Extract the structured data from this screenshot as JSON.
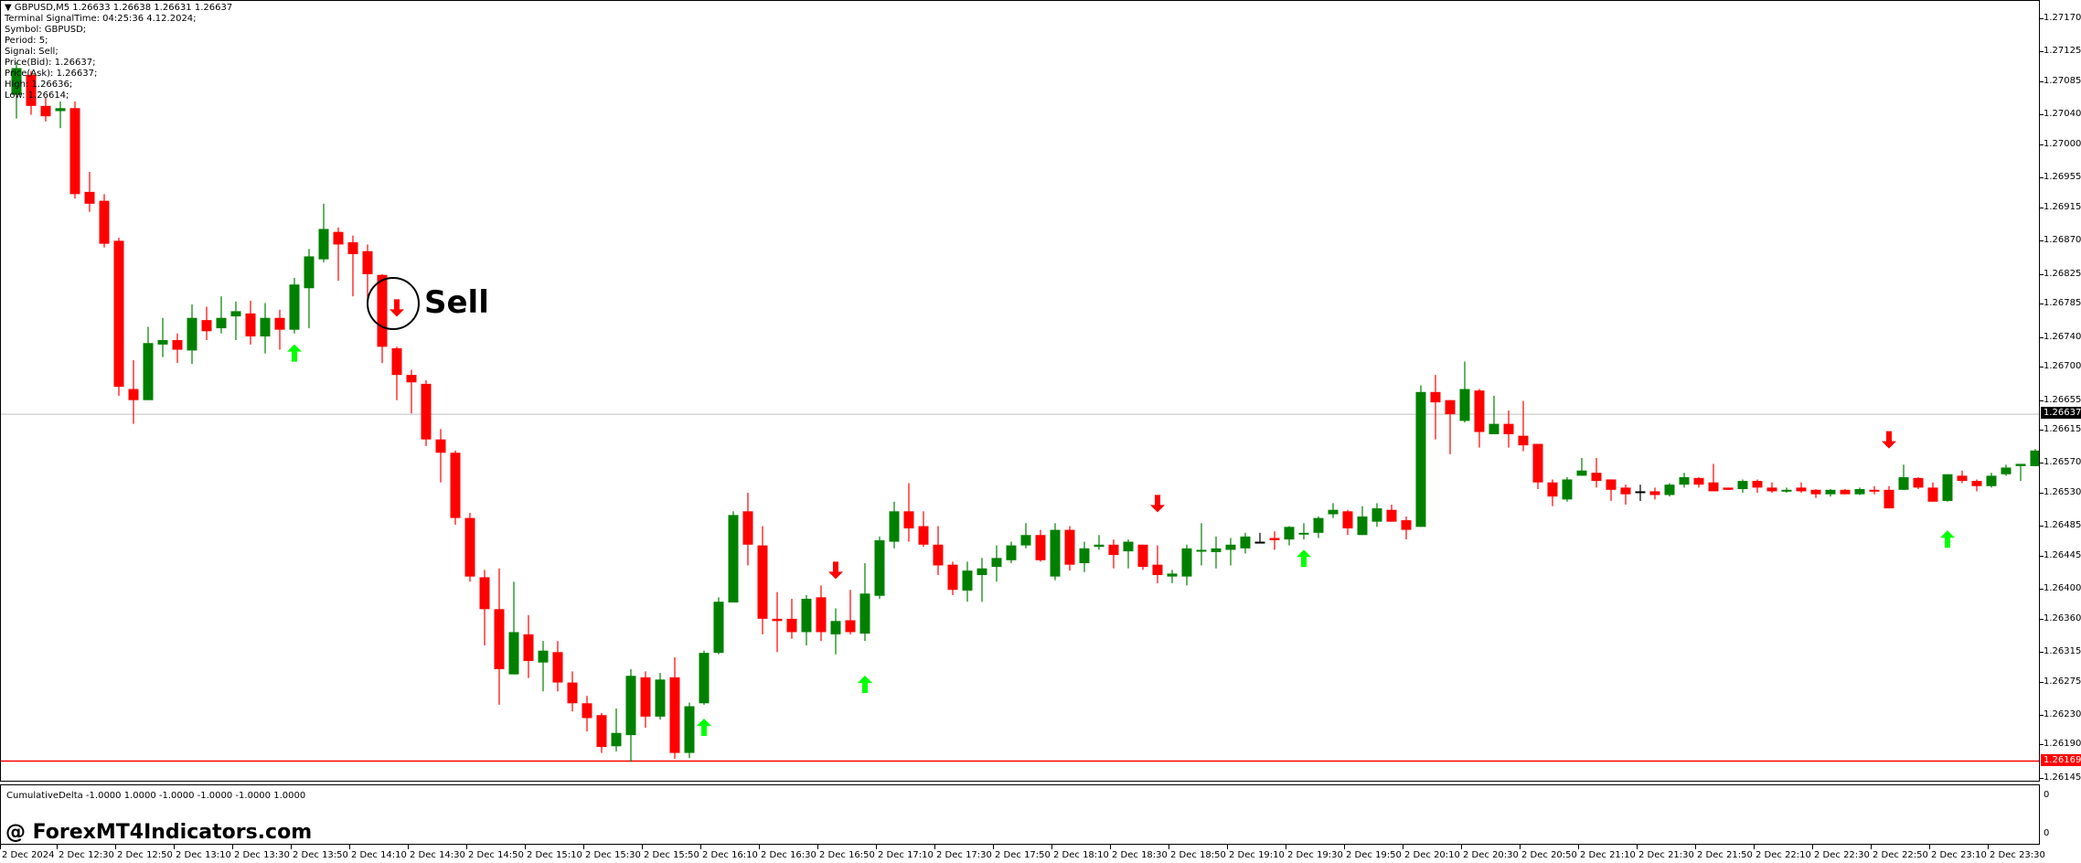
{
  "header": {
    "symbol_line": "GBPUSD,M5  1.26633 1.26638 1.26631 1.26637",
    "info_lines": [
      "Terminal SignalTime: 04:25:36   4.12.2024;",
      "Symbol: GBPUSD;",
      "Period: 5;",
      "Signal: Sell;",
      "Price(Bid): 1.26637;",
      "Price(Ask): 1.26637;",
      "High: 1.26636;",
      "Low: 1.26614;"
    ]
  },
  "annotation": {
    "label": "Sell"
  },
  "subwindow": {
    "title": "CumulativeDelta -1.0000 1.0000 -1.0000 -1.0000 -1.0000 1.0000",
    "axis_top": "0",
    "axis_bottom": "0"
  },
  "watermark": "@ ForexMT4Indicators.com",
  "colors": {
    "bull": "#008000",
    "bear": "#ff0000",
    "doji": "#000000",
    "up_arrow": "#00ff00",
    "down_arrow": "#ff0000",
    "bid_line": "#c0c0c0",
    "level_line": "#ff0000"
  },
  "price_badges": {
    "bid": "1.26637",
    "level": "1.26169"
  },
  "chart_data": {
    "type": "candlestick",
    "title": "GBPUSD,M5",
    "price_base": 1.26,
    "point": 1e-05,
    "note": "candles as [open, high, low, close] in points above price_base",
    "y_ticks": [
      "1.27170",
      "1.27125",
      "1.27085",
      "1.27040",
      "1.27000",
      "1.26955",
      "1.26915",
      "1.26870",
      "1.26825",
      "1.26785",
      "1.26740",
      "1.26700",
      "1.26655",
      "1.26615",
      "1.26570",
      "1.26530",
      "1.26485",
      "1.26445",
      "1.26400",
      "1.26360",
      "1.26315",
      "1.26275",
      "1.26230",
      "1.26190",
      "1.26145"
    ],
    "ylim": [
      1.26145,
      1.2717
    ],
    "x_ticks": [
      "2 Dec 2024",
      "2 Dec 12:30",
      "2 Dec 12:50",
      "2 Dec 13:10",
      "2 Dec 13:30",
      "2 Dec 13:50",
      "2 Dec 14:10",
      "2 Dec 14:30",
      "2 Dec 14:50",
      "2 Dec 15:10",
      "2 Dec 15:30",
      "2 Dec 15:50",
      "2 Dec 16:10",
      "2 Dec 16:30",
      "2 Dec 16:50",
      "2 Dec 17:10",
      "2 Dec 17:30",
      "2 Dec 17:50",
      "2 Dec 18:10",
      "2 Dec 18:30",
      "2 Dec 18:50",
      "2 Dec 19:10",
      "2 Dec 19:30",
      "2 Dec 19:50",
      "2 Dec 20:10",
      "2 Dec 20:30",
      "2 Dec 20:50",
      "2 Dec 21:10",
      "2 Dec 21:30",
      "2 Dec 21:50",
      "2 Dec 22:10",
      "2 Dec 22:30",
      "2 Dec 22:50",
      "2 Dec 23:10",
      "2 Dec 23:30"
    ],
    "bid_line": 1.26637,
    "level_line": 1.26169,
    "candles": [
      [
        1068,
        1112,
        1036,
        1104
      ],
      [
        1095,
        1100,
        1041,
        1053
      ],
      [
        1053,
        1064,
        1032,
        1039
      ],
      [
        1046,
        1059,
        1023,
        1050
      ],
      [
        1050,
        1059,
        928,
        934
      ],
      [
        937,
        964,
        910,
        921
      ],
      [
        925,
        934,
        862,
        867
      ],
      [
        871,
        875,
        662,
        674
      ],
      [
        671,
        710,
        624,
        656
      ],
      [
        656,
        755,
        656,
        733
      ],
      [
        731,
        767,
        714,
        737
      ],
      [
        737,
        746,
        706,
        724
      ],
      [
        723,
        785,
        705,
        767
      ],
      [
        764,
        782,
        737,
        749
      ],
      [
        753,
        796,
        746,
        767
      ],
      [
        769,
        789,
        737,
        776
      ],
      [
        773,
        790,
        731,
        742
      ],
      [
        742,
        787,
        719,
        767
      ],
      [
        767,
        778,
        724,
        751
      ],
      [
        751,
        821,
        746,
        812
      ],
      [
        807,
        860,
        753,
        850
      ],
      [
        846,
        921,
        842,
        887
      ],
      [
        883,
        889,
        817,
        866
      ],
      [
        869,
        878,
        796,
        853
      ],
      [
        857,
        866,
        790,
        826
      ],
      [
        825,
        826,
        706,
        728
      ],
      [
        726,
        728,
        656,
        690
      ],
      [
        690,
        697,
        638,
        680
      ],
      [
        678,
        683,
        594,
        603
      ],
      [
        603,
        617,
        545,
        585
      ],
      [
        585,
        588,
        488,
        497
      ],
      [
        497,
        504,
        411,
        418
      ],
      [
        417,
        427,
        325,
        374
      ],
      [
        374,
        429,
        245,
        293
      ],
      [
        286,
        411,
        286,
        343
      ],
      [
        340,
        366,
        281,
        304
      ],
      [
        302,
        331,
        263,
        318
      ],
      [
        316,
        331,
        263,
        275
      ],
      [
        275,
        290,
        236,
        247
      ],
      [
        247,
        257,
        209,
        227
      ],
      [
        231,
        234,
        180,
        188
      ],
      [
        189,
        240,
        182,
        207
      ],
      [
        204,
        293,
        168,
        284
      ],
      [
        282,
        290,
        214,
        229
      ],
      [
        229,
        288,
        225,
        279
      ],
      [
        282,
        309,
        172,
        180
      ],
      [
        180,
        248,
        173,
        243
      ],
      [
        247,
        318,
        245,
        315
      ],
      [
        315,
        390,
        313,
        384
      ],
      [
        383,
        506,
        383,
        501
      ],
      [
        506,
        531,
        433,
        461
      ],
      [
        460,
        486,
        340,
        361
      ],
      [
        361,
        397,
        316,
        358
      ],
      [
        361,
        388,
        334,
        343
      ],
      [
        343,
        393,
        325,
        388
      ],
      [
        390,
        406,
        331,
        343
      ],
      [
        340,
        375,
        313,
        358
      ],
      [
        359,
        400,
        340,
        343
      ],
      [
        341,
        436,
        331,
        395
      ],
      [
        392,
        472,
        388,
        467
      ],
      [
        465,
        519,
        456,
        506
      ],
      [
        506,
        544,
        465,
        483
      ],
      [
        486,
        506,
        458,
        461
      ],
      [
        461,
        486,
        420,
        433
      ],
      [
        434,
        438,
        393,
        400
      ],
      [
        399,
        438,
        384,
        426
      ],
      [
        420,
        443,
        384,
        429
      ],
      [
        431,
        460,
        411,
        443
      ],
      [
        440,
        465,
        436,
        460
      ],
      [
        460,
        490,
        456,
        474
      ],
      [
        474,
        481,
        438,
        440
      ],
      [
        418,
        490,
        413,
        481
      ],
      [
        481,
        486,
        426,
        434
      ],
      [
        436,
        465,
        424,
        456
      ],
      [
        458,
        474,
        454,
        461
      ],
      [
        461,
        468,
        429,
        447
      ],
      [
        452,
        468,
        429,
        465
      ],
      [
        461,
        461,
        427,
        431
      ],
      [
        434,
        460,
        409,
        420
      ],
      [
        418,
        427,
        409,
        422
      ],
      [
        418,
        461,
        406,
        456
      ],
      [
        452,
        490,
        433,
        454
      ],
      [
        451,
        472,
        429,
        456
      ],
      [
        454,
        470,
        433,
        461
      ],
      [
        456,
        477,
        449,
        472
      ],
      [
        465,
        477,
        463,
        465
      ],
      [
        470,
        479,
        454,
        467
      ],
      [
        468,
        486,
        460,
        485
      ],
      [
        476,
        490,
        468,
        477
      ],
      [
        477,
        499,
        470,
        497
      ],
      [
        502,
        517,
        497,
        508
      ],
      [
        506,
        508,
        474,
        483
      ],
      [
        474,
        513,
        474,
        499
      ],
      [
        492,
        517,
        485,
        510
      ],
      [
        508,
        515,
        492,
        492
      ],
      [
        494,
        499,
        468,
        481
      ],
      [
        485,
        676,
        485,
        667
      ],
      [
        667,
        690,
        603,
        653
      ],
      [
        656,
        656,
        583,
        637
      ],
      [
        628,
        708,
        626,
        671
      ],
      [
        669,
        671,
        592,
        613
      ],
      [
        610,
        662,
        610,
        624
      ],
      [
        624,
        642,
        592,
        610
      ],
      [
        608,
        655,
        587,
        595
      ],
      [
        597,
        597,
        536,
        545
      ],
      [
        545,
        549,
        513,
        526
      ],
      [
        522,
        552,
        519,
        549
      ],
      [
        554,
        578,
        554,
        561
      ],
      [
        558,
        578,
        538,
        547
      ],
      [
        549,
        549,
        520,
        535
      ],
      [
        538,
        542,
        515,
        529
      ],
      [
        533,
        542,
        520,
        533
      ],
      [
        533,
        538,
        522,
        528
      ],
      [
        528,
        544,
        526,
        542
      ],
      [
        542,
        558,
        538,
        552
      ],
      [
        551,
        552,
        538,
        542
      ],
      [
        545,
        570,
        533,
        533
      ],
      [
        538,
        538,
        535,
        535
      ],
      [
        536,
        549,
        531,
        547
      ],
      [
        547,
        549,
        531,
        538
      ],
      [
        538,
        545,
        531,
        533
      ],
      [
        533,
        538,
        531,
        535
      ],
      [
        538,
        545,
        531,
        533
      ],
      [
        535,
        536,
        524,
        529
      ],
      [
        529,
        536,
        526,
        535
      ],
      [
        535,
        536,
        529,
        529
      ],
      [
        529,
        538,
        528,
        536
      ],
      [
        535,
        540,
        529,
        533
      ],
      [
        535,
        540,
        510,
        510
      ],
      [
        535,
        569,
        535,
        552
      ],
      [
        551,
        552,
        536,
        538
      ],
      [
        538,
        545,
        519,
        519
      ],
      [
        520,
        556,
        519,
        556
      ],
      [
        554,
        561,
        544,
        547
      ],
      [
        547,
        549,
        533,
        540
      ],
      [
        540,
        558,
        538,
        554
      ],
      [
        556,
        569,
        554,
        565
      ],
      [
        567,
        570,
        547,
        570
      ],
      [
        567,
        590,
        567,
        588
      ]
    ],
    "doji_black": [
      85,
      111
    ],
    "signals": {
      "up": [
        {
          "candle": 19,
          "price_pts": 719
        },
        {
          "candle": 47,
          "price_pts": 214
        },
        {
          "candle": 58,
          "price_pts": 272
        },
        {
          "candle": 88,
          "price_pts": 442
        },
        {
          "candle": 132,
          "price_pts": 468
        }
      ],
      "down": [
        {
          "candle": 26,
          "price_pts": 781
        },
        {
          "candle": 56,
          "price_pts": 427
        },
        {
          "candle": 78,
          "price_pts": 517
        },
        {
          "candle": 128,
          "price_pts": 603
        }
      ]
    }
  }
}
